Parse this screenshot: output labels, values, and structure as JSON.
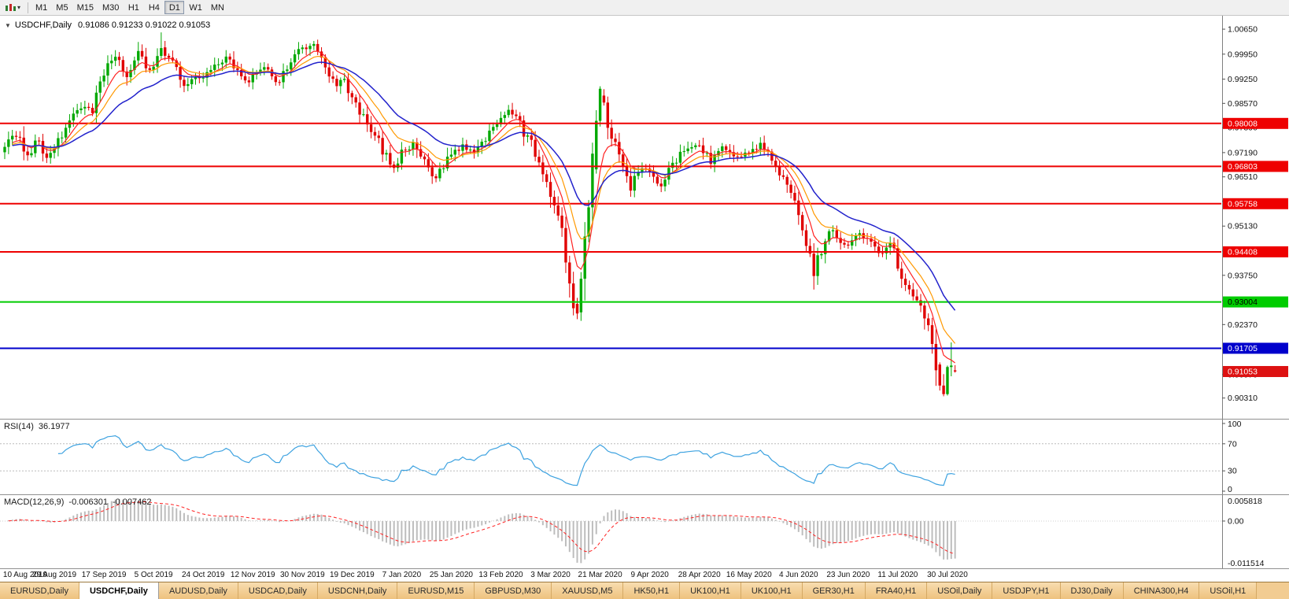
{
  "toolbar": {
    "timeframes": [
      "M1",
      "M5",
      "M15",
      "M30",
      "H1",
      "H4",
      "D1",
      "W1",
      "MN"
    ],
    "selected_timeframe": "D1"
  },
  "chart_header": {
    "collapse_arrow": "▼",
    "title": "USDCHF,Daily",
    "ohlc_text": "0.91086 0.91233 0.91022 0.91053"
  },
  "price_axis_ticks": [
    "1.00650",
    "0.99950",
    "0.99250",
    "0.98570",
    "0.97890",
    "0.97190",
    "0.96510",
    "0.95830",
    "0.95130",
    "0.94430",
    "0.93750",
    "0.93040",
    "0.92370",
    "0.91670",
    "0.90970",
    "0.90310"
  ],
  "levels": [
    {
      "value": 0.98008,
      "label": "0.98008",
      "color": "#ee0000",
      "text": "#ffffff"
    },
    {
      "value": 0.96803,
      "label": "0.96803",
      "color": "#ee0000",
      "text": "#ffffff"
    },
    {
      "value": 0.95758,
      "label": "0.95758",
      "color": "#ee0000",
      "text": "#ffffff"
    },
    {
      "value": 0.94408,
      "label": "0.94408",
      "color": "#ee0000",
      "text": "#ffffff"
    },
    {
      "value": 0.93004,
      "label": "0.93004",
      "color": "#00cc00",
      "text": "#000000"
    },
    {
      "value": 0.91705,
      "label": "0.91705",
      "color": "#0000cc",
      "text": "#ffffff"
    }
  ],
  "current_price": {
    "value": 0.91053,
    "label": "0.91053",
    "color": "#dd1111",
    "text": "#ffffff"
  },
  "rsi_panel": {
    "label": "RSI(14)",
    "value": "36.1977",
    "axis_ticks": [
      "100",
      "70",
      "30",
      "0"
    ],
    "levels": [
      70,
      30
    ],
    "line_color": "#3da2e0"
  },
  "macd_panel": {
    "label": "MACD(12,26,9)",
    "value_main": "-0.006301",
    "value_signal": "-0.007462",
    "axis_top": "0.005818",
    "axis_zero": "0.00",
    "axis_bottom": "-0.011514",
    "histogram_color": "#bdbdbd",
    "signal_color": "#ff2222"
  },
  "date_axis": [
    "10 Aug 2019",
    "29 Aug 2019",
    "17 Sep 2019",
    "5 Oct 2019",
    "24 Oct 2019",
    "12 Nov 2019",
    "30 Nov 2019",
    "19 Dec 2019",
    "7 Jan 2020",
    "25 Jan 2020",
    "13 Feb 2020",
    "3 Mar 2020",
    "21 Mar 2020",
    "9 Apr 2020",
    "28 Apr 2020",
    "16 May 2020",
    "4 Jun 2020",
    "23 Jun 2020",
    "11 Jul 2020",
    "30 Jul 2020"
  ],
  "tabs": {
    "active_index": 1,
    "items": [
      "EURUSD,Daily",
      "USDCHF,Daily",
      "AUDUSD,Daily",
      "USDCAD,Daily",
      "USDCNH,Daily",
      "EURUSD,M15",
      "GBPUSD,M30",
      "XAUUSD,M5",
      "HK50,H1",
      "UK100,H1",
      "UK100,H1",
      "GER30,H1",
      "FRA40,H1",
      "USOil,Daily",
      "USDJPY,H1",
      "DJ30,Daily",
      "CHINA300,H4",
      "USOil,H1"
    ]
  },
  "chart_data": {
    "type": "candlestick",
    "symbol": "USDCHF",
    "timeframe": "Daily",
    "num_candles": 250,
    "y_range": [
      0.8995,
      1.0085
    ],
    "current_ohlc": {
      "open": 0.91086,
      "high": 0.91233,
      "low": 0.91022,
      "close": 0.91053
    },
    "up_color": "#00a800",
    "down_color": "#e00000",
    "moving_averages": [
      {
        "period": 7,
        "color": "#ff2222",
        "width": 1.2
      },
      {
        "period": 13,
        "color": "#ff9900",
        "width": 1.2
      },
      {
        "period": 26,
        "color": "#2222cc",
        "width": 1.5
      }
    ],
    "close_anchors": [
      [
        0,
        0.9735
      ],
      [
        3,
        0.9772
      ],
      [
        6,
        0.9716
      ],
      [
        9,
        0.9752
      ],
      [
        11,
        0.9692
      ],
      [
        13,
        0.9728
      ],
      [
        16,
        0.979
      ],
      [
        20,
        0.9852
      ],
      [
        23,
        0.9828
      ],
      [
        26,
        0.9945
      ],
      [
        29,
        0.9982
      ],
      [
        32,
        0.9928
      ],
      [
        35,
        1.0002
      ],
      [
        38,
        0.9948
      ],
      [
        41,
        1.0012
      ],
      [
        44,
        0.9968
      ],
      [
        47,
        0.9902
      ],
      [
        50,
        0.9942
      ],
      [
        52,
        0.9928
      ],
      [
        55,
        0.9962
      ],
      [
        58,
        0.9988
      ],
      [
        61,
        0.9938
      ],
      [
        64,
        0.9922
      ],
      [
        68,
        0.9962
      ],
      [
        71,
        0.9908
      ],
      [
        74,
        0.9948
      ],
      [
        77,
        1.0002
      ],
      [
        81,
        1.0018
      ],
      [
        84,
        0.9958
      ],
      [
        87,
        0.9905
      ],
      [
        89,
        0.9928
      ],
      [
        91,
        0.9858
      ],
      [
        94,
        0.9818
      ],
      [
        97,
        0.9768
      ],
      [
        100,
        0.9712
      ],
      [
        102,
        0.9678
      ],
      [
        104,
        0.9718
      ],
      [
        107,
        0.9742
      ],
      [
        110,
        0.9688
      ],
      [
        113,
        0.9652
      ],
      [
        115,
        0.9682
      ],
      [
        117,
        0.9712
      ],
      [
        120,
        0.9738
      ],
      [
        123,
        0.9718
      ],
      [
        126,
        0.9758
      ],
      [
        128,
        0.9788
      ],
      [
        130,
        0.9818
      ],
      [
        132,
        0.9848
      ],
      [
        134,
        0.9812
      ],
      [
        136,
        0.9778
      ],
      [
        138,
        0.9742
      ],
      [
        140,
        0.9698
      ],
      [
        142,
        0.9638
      ],
      [
        143,
        0.9608
      ],
      [
        145,
        0.9555
      ],
      [
        147,
        0.9425
      ],
      [
        149,
        0.9295
      ],
      [
        150,
        0.9268
      ],
      [
        151,
        0.936
      ],
      [
        152,
        0.9455
      ],
      [
        153,
        0.9548
      ],
      [
        154,
        0.9672
      ],
      [
        155,
        0.9808
      ],
      [
        156,
        0.9898
      ],
      [
        157,
        0.9858
      ],
      [
        158,
        0.9798
      ],
      [
        160,
        0.9742
      ],
      [
        162,
        0.9688
      ],
      [
        164,
        0.9628
      ],
      [
        166,
        0.9678
      ],
      [
        169,
        0.9668
      ],
      [
        172,
        0.9628
      ],
      [
        175,
        0.9688
      ],
      [
        178,
        0.9722
      ],
      [
        180,
        0.9742
      ],
      [
        182,
        0.9738
      ],
      [
        185,
        0.9698
      ],
      [
        188,
        0.9732
      ],
      [
        191,
        0.9712
      ],
      [
        195,
        0.9714
      ],
      [
        198,
        0.9742
      ],
      [
        200,
        0.9718
      ],
      [
        202,
        0.9678
      ],
      [
        204,
        0.9638
      ],
      [
        206,
        0.9608
      ],
      [
        208,
        0.9558
      ],
      [
        210,
        0.9468
      ],
      [
        212,
        0.9388
      ],
      [
        214,
        0.9438
      ],
      [
        216,
        0.9508
      ],
      [
        218,
        0.9478
      ],
      [
        221,
        0.9462
      ],
      [
        224,
        0.9492
      ],
      [
        227,
        0.9458
      ],
      [
        230,
        0.9438
      ],
      [
        232,
        0.9468
      ],
      [
        234,
        0.9398
      ],
      [
        236,
        0.9352
      ],
      [
        238,
        0.9318
      ],
      [
        240,
        0.9278
      ],
      [
        242,
        0.9238
      ],
      [
        244,
        0.9125
      ],
      [
        245,
        0.9066
      ],
      [
        246,
        0.9042
      ],
      [
        247,
        0.9118
      ],
      [
        248,
        0.9122
      ],
      [
        249,
        0.91053
      ]
    ],
    "ohlc_overrides": [
      [
        41,
        0.999,
        1.0056,
        0.9982,
        1.0012
      ],
      [
        150,
        0.9295,
        0.9312,
        0.9252,
        0.9268
      ],
      [
        155,
        0.9672,
        0.9838,
        0.966,
        0.9808
      ],
      [
        156,
        0.9808,
        0.9905,
        0.9792,
        0.9898
      ],
      [
        245,
        0.9125,
        0.9131,
        0.9052,
        0.9066
      ],
      [
        246,
        0.9066,
        0.9098,
        0.9036,
        0.9042
      ],
      [
        247,
        0.9042,
        0.9122,
        0.9038,
        0.9118
      ],
      [
        248,
        0.9118,
        0.9187,
        0.9092,
        0.9122
      ],
      [
        249,
        0.91086,
        0.91233,
        0.91022,
        0.91053
      ]
    ],
    "rsi": {
      "period": 14,
      "current": 36.1977
    },
    "macd": {
      "fast": 12,
      "slow": 26,
      "signal": 9,
      "current_main": -0.006301,
      "current_signal": -0.007462
    },
    "x_labels_every": 13
  }
}
